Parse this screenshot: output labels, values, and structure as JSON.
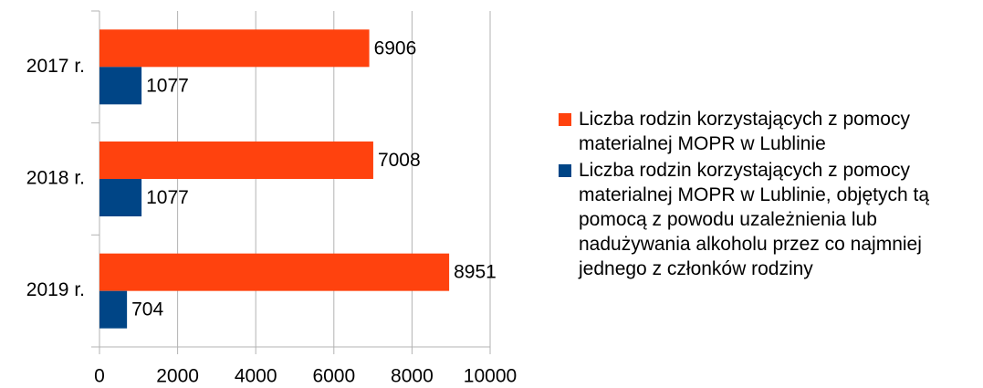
{
  "chart_data": {
    "type": "hbar",
    "categories": [
      "2017 r.",
      "2018 r.",
      "2019 r."
    ],
    "series": [
      {
        "name": "Liczba rodzin korzystających z pomocy materialnej MOPR w Lublinie",
        "color": "#ff420e",
        "values": [
          6906,
          7008,
          8951
        ]
      },
      {
        "name": "Liczba rodzin korzystających z pomocy materialnej MOPR w Lublinie, objętych tą pomocą z powodu uzależnienia lub nadużywania alkoholu przez co najmniej jednego z członków rodziny",
        "color": "#004586",
        "values": [
          1077,
          1077,
          704
        ]
      }
    ],
    "xlim": [
      0,
      10000
    ],
    "xticks": [
      0,
      2000,
      4000,
      6000,
      8000,
      10000
    ],
    "grid": true,
    "legend": "right"
  }
}
